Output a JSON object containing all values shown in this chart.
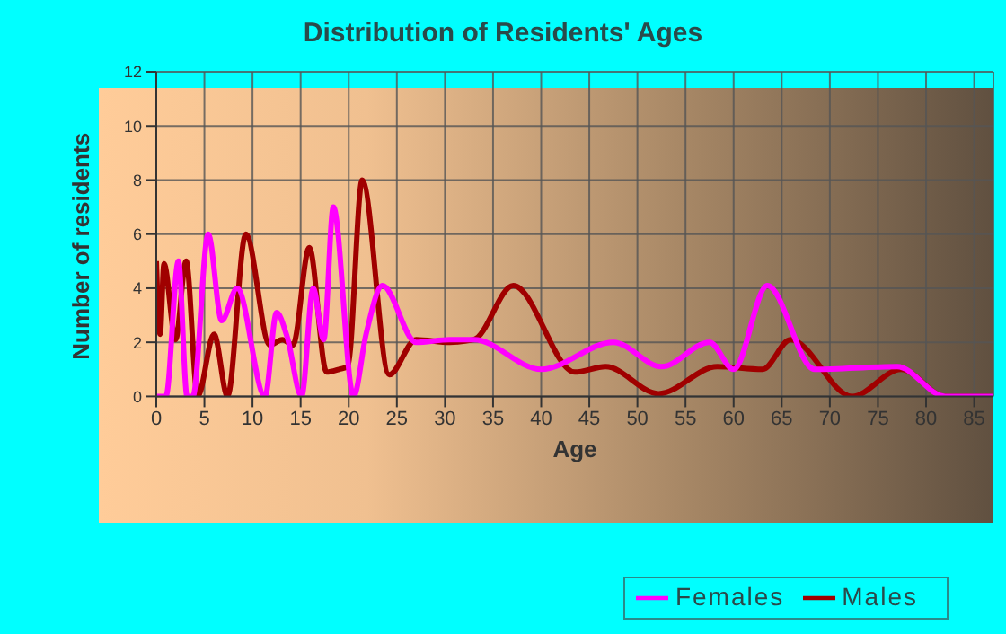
{
  "chart_data": {
    "type": "line",
    "title": "Distribution of Residents' Ages",
    "xlabel": "Age",
    "ylabel": "Number of residents",
    "xlim": [
      0,
      87
    ],
    "xticks": [
      0,
      5,
      10,
      15,
      20,
      25,
      30,
      35,
      40,
      45,
      50,
      55,
      60,
      65,
      70,
      75,
      80,
      85
    ],
    "ylim": [
      0,
      12
    ],
    "yticks": [
      0,
      2,
      4,
      6,
      8,
      10,
      12
    ],
    "grid": true,
    "legend": "bottom right",
    "marker": "none",
    "line_style": "solid",
    "series": [
      {
        "name": "Males",
        "color": "#a00000",
        "x": [
          0,
          0.4,
          0.8,
          2,
          3.1,
          4.3,
          6,
          7.4,
          9.3,
          11.8,
          13.1,
          14.2,
          15.9,
          17.7,
          19,
          19.9,
          21.4,
          24.2,
          27,
          30.5,
          33,
          37.1,
          43.5,
          46.7,
          52.2,
          58.3,
          63,
          65.9,
          72.3,
          77.4,
          82,
          87
        ],
        "values": [
          5,
          2.3,
          4.9,
          2.1,
          5,
          0,
          2.3,
          0,
          6,
          1.9,
          2.1,
          1.9,
          5.5,
          0.9,
          1,
          1.1,
          8,
          0.8,
          2.1,
          2,
          2.1,
          4.1,
          0.9,
          1.1,
          0.1,
          1.1,
          1,
          2.1,
          0,
          1,
          0,
          0
        ]
      },
      {
        "name": "Females",
        "color": "#ff00ff",
        "x": [
          0,
          1,
          2.3,
          3.2,
          3.8,
          5.4,
          6.8,
          8.4,
          11.3,
          12.5,
          13.6,
          15.1,
          16.3,
          17.4,
          18.4,
          20.5,
          21.8,
          23.5,
          27,
          30.5,
          33,
          40,
          47.5,
          52.5,
          57.5,
          60,
          63.5,
          68.4,
          77,
          82,
          87
        ],
        "values": [
          0,
          0,
          5,
          0,
          0,
          6,
          2.8,
          4,
          0,
          3.1,
          2.2,
          0,
          4,
          2.1,
          7,
          0,
          2.3,
          4.1,
          2,
          2.1,
          2.1,
          1,
          2,
          1.1,
          2,
          1,
          4.1,
          1,
          1.1,
          0,
          0
        ]
      }
    ]
  }
}
